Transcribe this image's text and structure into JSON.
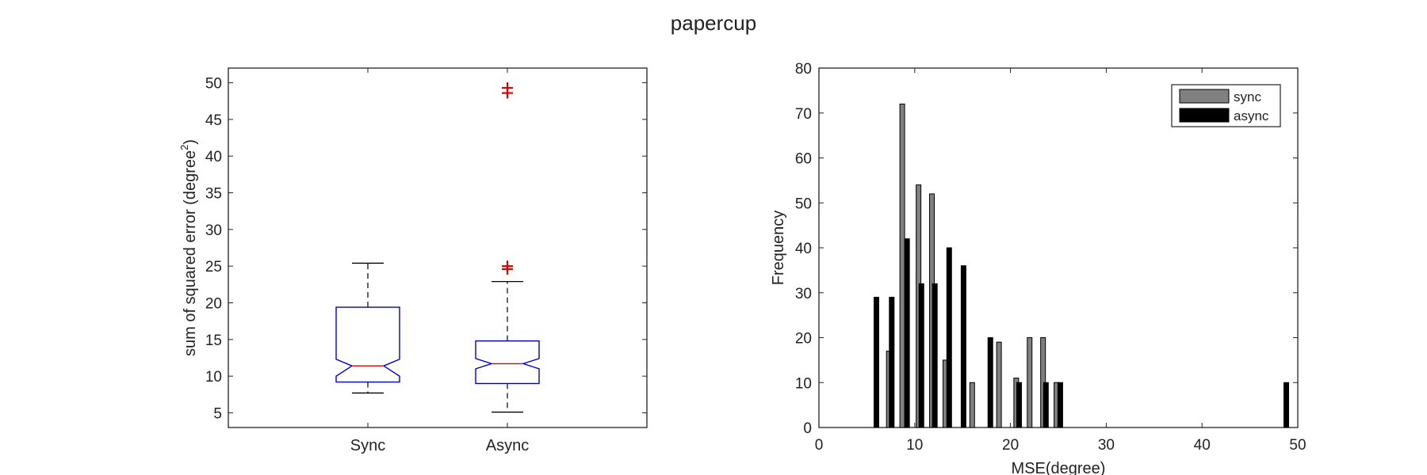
{
  "figure": {
    "title": "papercup"
  },
  "chart_data": [
    {
      "type": "box",
      "title": "",
      "xlabel": "",
      "ylabel": "sum of squared error (degree",
      "ylabel_superscript": "2",
      "ylabel_suffix": ")",
      "ylim": [
        3,
        52
      ],
      "yticks": [
        5,
        10,
        15,
        20,
        25,
        30,
        35,
        40,
        45,
        50
      ],
      "categories": [
        "Sync",
        "Async"
      ],
      "notched": true,
      "grid": false,
      "colors": {
        "box": "#0000cc",
        "median": "#dd0000",
        "whisker": "#000000",
        "outlier": "#dd0000"
      },
      "boxes": [
        {
          "name": "Sync",
          "q1": 9.2,
          "median": 11.4,
          "q3": 19.4,
          "notch_low": 10.0,
          "notch_high": 12.3,
          "whisker_low": 7.7,
          "whisker_high": 25.4,
          "outliers": []
        },
        {
          "name": "Async",
          "q1": 9.0,
          "median": 11.7,
          "q3": 14.8,
          "notch_low": 11.0,
          "notch_high": 12.4,
          "whisker_low": 5.1,
          "whisker_high": 22.9,
          "outliers": [
            24.6,
            25.0,
            48.6,
            49.3
          ]
        }
      ]
    },
    {
      "type": "bar",
      "title": "",
      "xlabel": "MSE(degree)",
      "ylabel": "Frequency",
      "xlim": [
        0,
        50
      ],
      "ylim": [
        0,
        80
      ],
      "xticks": [
        0,
        10,
        20,
        30,
        40,
        50
      ],
      "yticks": [
        0,
        10,
        20,
        30,
        40,
        50,
        60,
        70,
        80
      ],
      "legend": "top-right",
      "grid": false,
      "series": [
        {
          "name": "sync",
          "color": "#808080",
          "x": [
            7.3,
            8.7,
            10.4,
            11.8,
            13.2,
            16.0,
            18.8,
            20.6,
            22.0,
            23.4,
            24.8
          ],
          "values": [
            17,
            72,
            54,
            52,
            15,
            10,
            19,
            11,
            20,
            20,
            10
          ]
        },
        {
          "name": "async",
          "color": "#000000",
          "x": [
            6.0,
            7.6,
            9.2,
            10.7,
            12.1,
            13.6,
            15.1,
            17.9,
            20.9,
            23.7,
            25.2,
            48.8
          ],
          "values": [
            29,
            29,
            42,
            32,
            32,
            40,
            36,
            20,
            10,
            10,
            10,
            10
          ]
        }
      ]
    }
  ]
}
